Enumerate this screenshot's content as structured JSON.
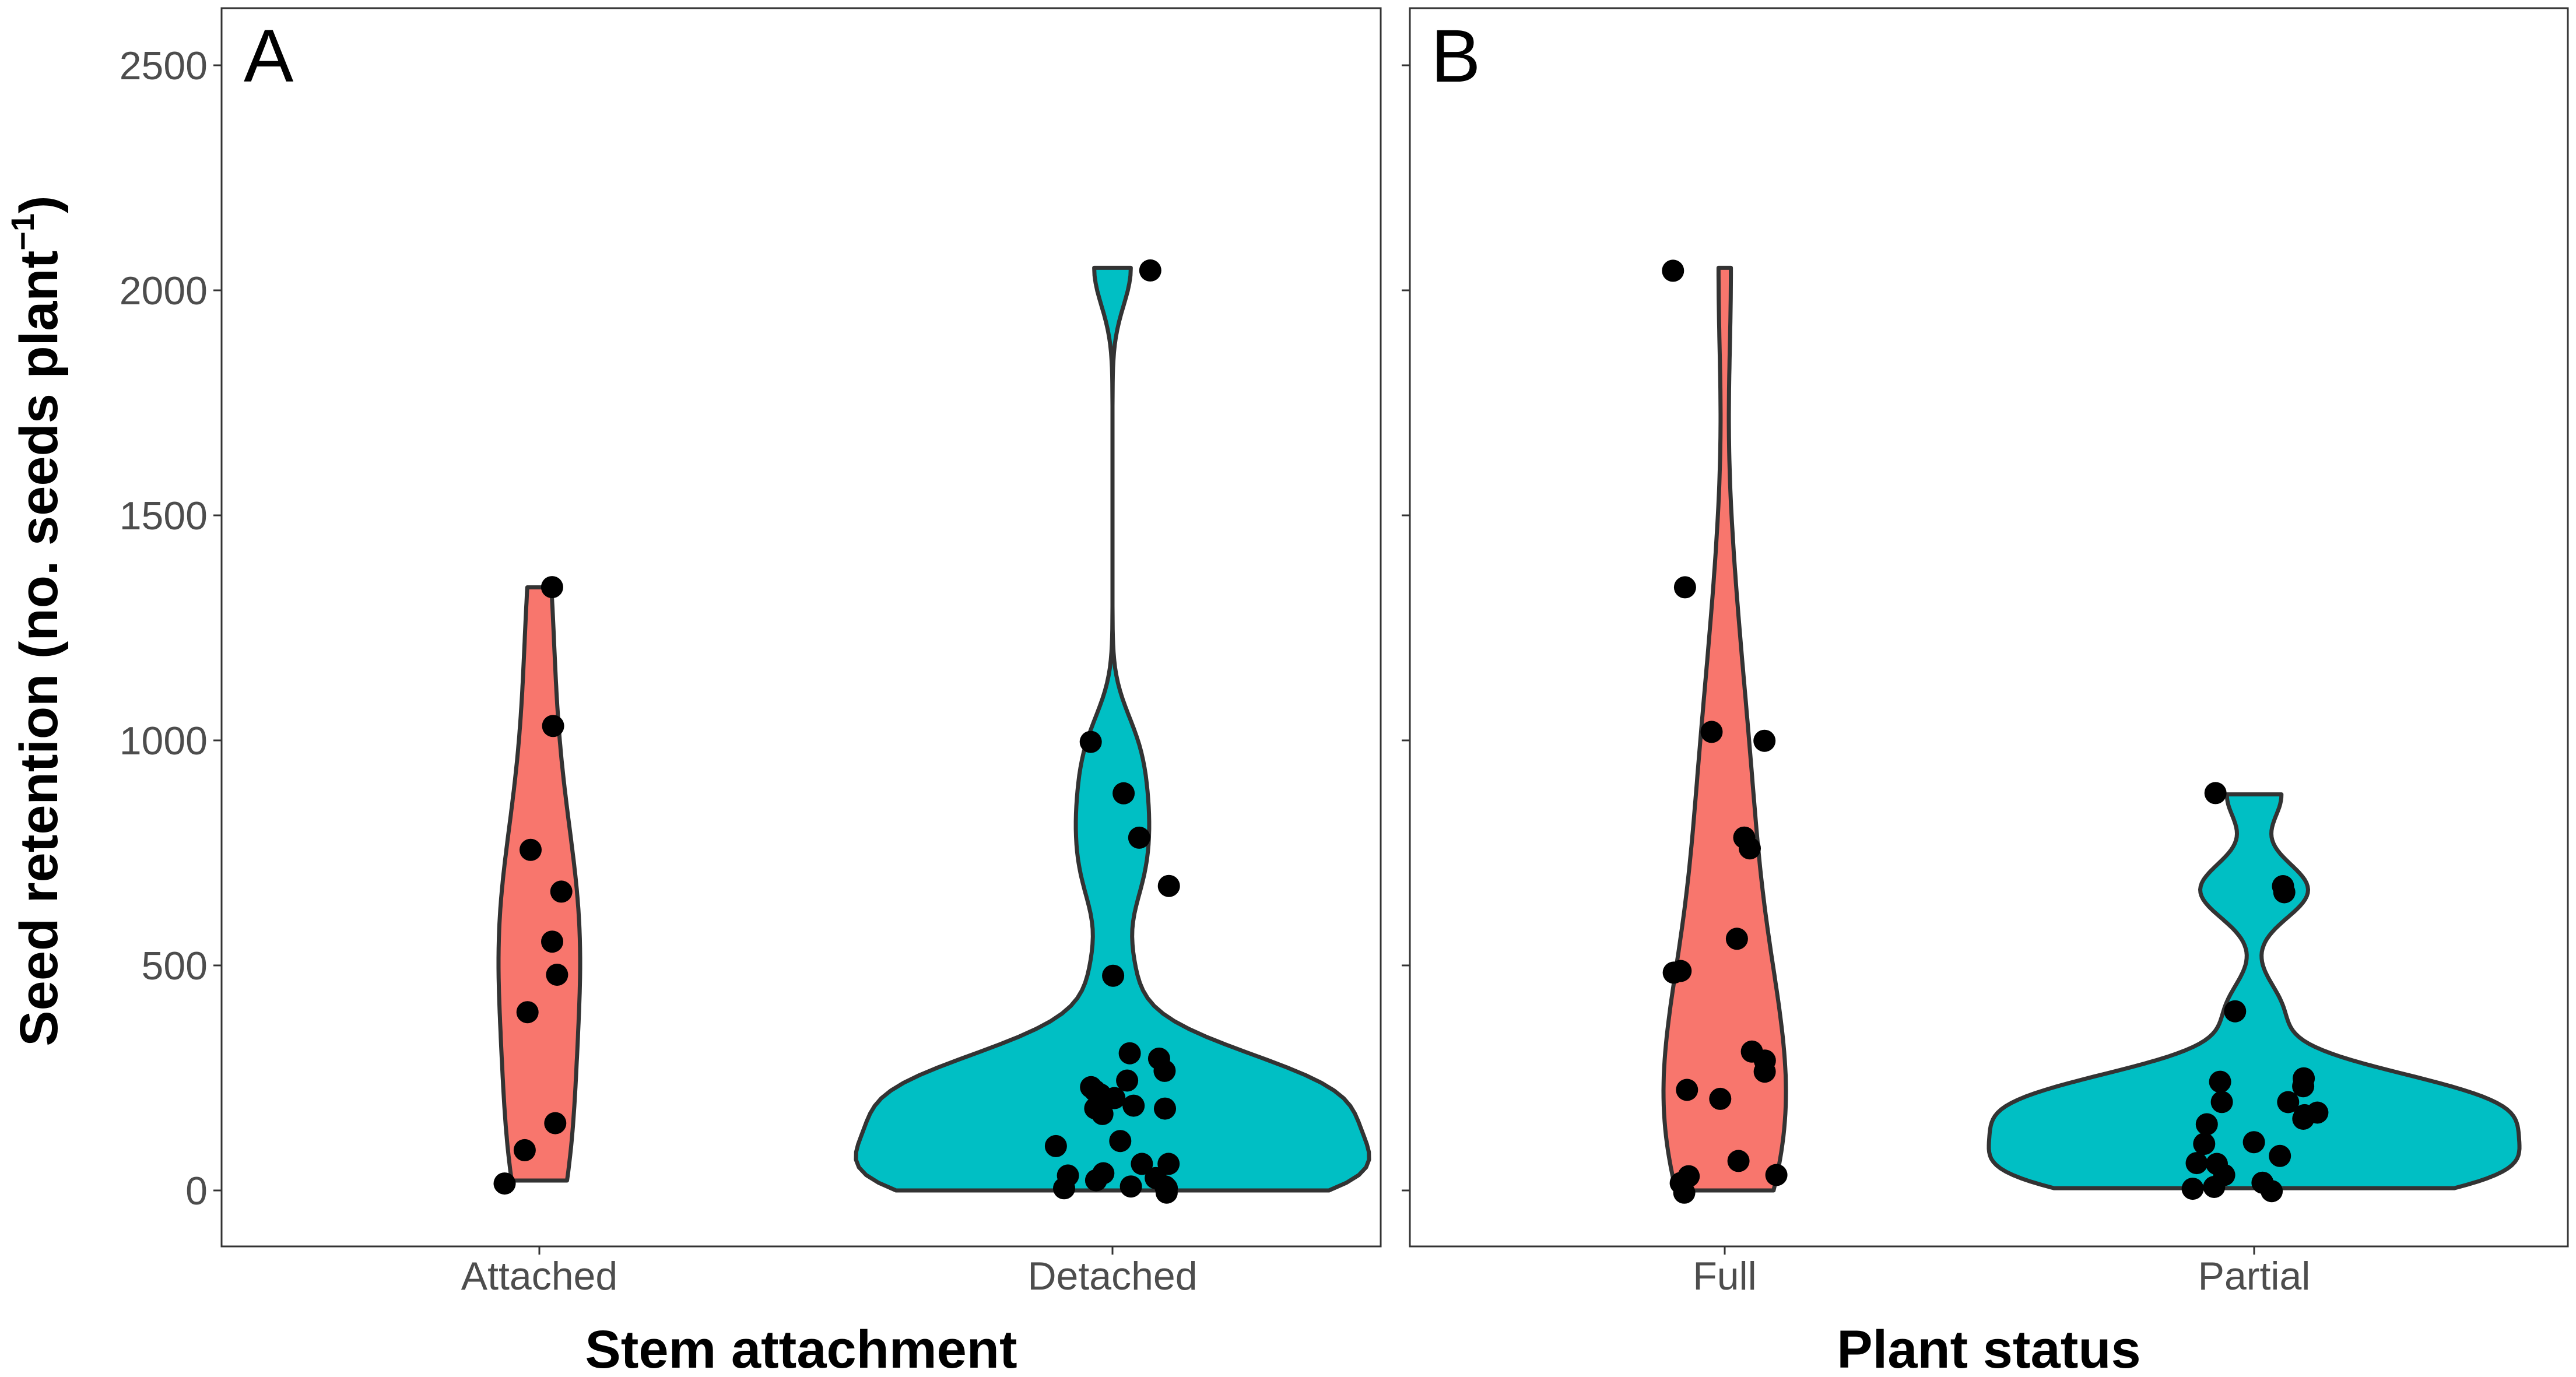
{
  "y_axis": {
    "title": "Seed retention (no. seeds plant",
    "title_sup": "−1",
    "title_close": ")"
  },
  "colors": {
    "red_fill": "#F8766D",
    "teal_fill": "#00BFC4",
    "outline": "#333333",
    "point": "#000000"
  },
  "chart_data": [
    {
      "type": "violin",
      "panel_tag": "A",
      "xlabel": "Stem attachment",
      "ylabel": "Seed retention (no. seeds plant−1)",
      "ylim": [
        0,
        2550
      ],
      "yticks": [
        0,
        500,
        1000,
        1500,
        2000,
        2500
      ],
      "categories": [
        "Attached",
        "Detached"
      ],
      "series": [
        {
          "category": "Attached",
          "fill": "#F8766D",
          "points": [
            22,
            85,
            150,
            400,
            480,
            555,
            660,
            760,
            1025,
            1340
          ]
        },
        {
          "category": "Detached",
          "fill": "#00BFC4",
          "points": [
            0,
            5,
            8,
            10,
            15,
            20,
            25,
            30,
            35,
            60,
            65,
            95,
            110,
            165,
            175,
            180,
            195,
            200,
            210,
            220,
            230,
            240,
            265,
            295,
            305,
            480,
            675,
            780,
            880,
            995,
            2050
          ]
        }
      ]
    },
    {
      "type": "violin",
      "panel_tag": "B",
      "xlabel": "Plant status",
      "ylabel": "",
      "ylim": [
        0,
        2550
      ],
      "yticks": [
        0,
        500,
        1000,
        1500,
        2000,
        2500
      ],
      "categories": [
        "Full",
        "Partial"
      ],
      "series": [
        {
          "category": "Full",
          "fill": "#F8766D",
          "points": [
            0,
            15,
            25,
            30,
            60,
            205,
            230,
            270,
            295,
            305,
            480,
            480,
            555,
            760,
            780,
            995,
            1025,
            1340,
            2050
          ]
        },
        {
          "category": "Partial",
          "fill": "#00BFC4",
          "points": [
            5,
            10,
            15,
            20,
            30,
            60,
            65,
            80,
            100,
            110,
            150,
            160,
            165,
            180,
            195,
            200,
            230,
            240,
            250,
            400,
            660,
            675,
            880
          ]
        }
      ]
    }
  ]
}
